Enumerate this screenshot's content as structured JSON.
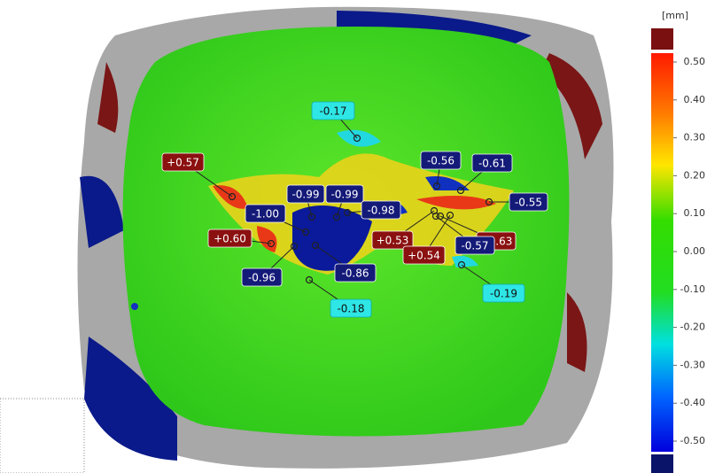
{
  "color_scale": {
    "unit": "[mm]",
    "over_color": "#7a1010",
    "under_color": "#0a1468",
    "labels": [
      "0.50",
      "0.40",
      "0.30",
      "0.20",
      "0.10",
      "0.00",
      "-0.10",
      "-0.20",
      "-0.30",
      "-0.40",
      "-0.50"
    ]
  },
  "annotations": [
    {
      "label": "-0.17",
      "color": "#2ee6e6"
    },
    {
      "label": "+0.57",
      "color": "#8b1010"
    },
    {
      "label": "-0.56",
      "color": "#141a78"
    },
    {
      "label": "-0.61",
      "color": "#141a78"
    },
    {
      "label": "-0.99",
      "color": "#141a78"
    },
    {
      "label": "-0.99",
      "color": "#141a78"
    },
    {
      "label": "-0.98",
      "color": "#141a78"
    },
    {
      "label": "-1.00",
      "color": "#141a78"
    },
    {
      "label": "-0.55",
      "color": "#141a78"
    },
    {
      "label": "+0.60",
      "color": "#8b1010"
    },
    {
      "label": "+0.53",
      "color": "#8b1010"
    },
    {
      "label": "+0.63",
      "color": "#8b1010"
    },
    {
      "label": "-0.57",
      "color": "#141a78"
    },
    {
      "label": "+0.54",
      "color": "#8b1010"
    },
    {
      "label": "-0.96",
      "color": "#141a78"
    },
    {
      "label": "-0.86",
      "color": "#141a78"
    },
    {
      "label": "-0.18",
      "color": "#2ee6e6"
    },
    {
      "label": "-0.19",
      "color": "#2ee6e6"
    }
  ]
}
